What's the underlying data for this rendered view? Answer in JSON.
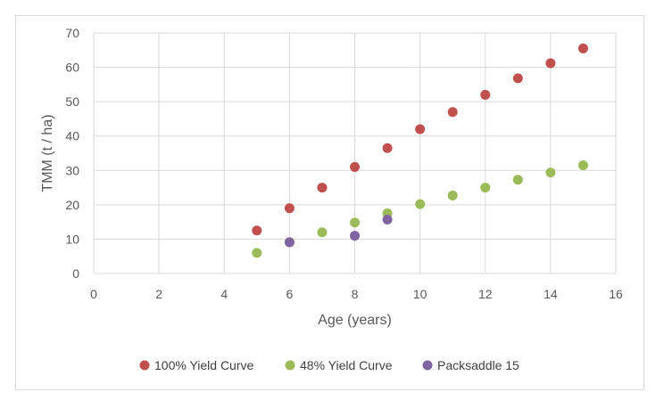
{
  "chart_data": {
    "type": "scatter",
    "title": "",
    "xlabel": "Age (years)",
    "ylabel": "TMM (t / ha)",
    "xlim": [
      0,
      16
    ],
    "ylim": [
      0,
      70
    ],
    "x_ticks": [
      0,
      2,
      4,
      6,
      8,
      10,
      12,
      14,
      16
    ],
    "y_ticks": [
      0,
      10,
      20,
      30,
      40,
      50,
      60,
      70
    ],
    "grid": true,
    "legend_position": "bottom",
    "series": [
      {
        "name": "100% Yield Curve",
        "color": "#c0504d",
        "points": [
          {
            "x": 5,
            "y": 12.5
          },
          {
            "x": 6,
            "y": 19
          },
          {
            "x": 7,
            "y": 25
          },
          {
            "x": 8,
            "y": 31
          },
          {
            "x": 9,
            "y": 36.5
          },
          {
            "x": 10,
            "y": 42
          },
          {
            "x": 11,
            "y": 47
          },
          {
            "x": 12,
            "y": 52
          },
          {
            "x": 13,
            "y": 56.8
          },
          {
            "x": 14,
            "y": 61.2
          },
          {
            "x": 15,
            "y": 65.5
          }
        ]
      },
      {
        "name": "48% Yield Curve",
        "color": "#9bbb59",
        "points": [
          {
            "x": 5,
            "y": 6
          },
          {
            "x": 6,
            "y": 9.1
          },
          {
            "x": 7,
            "y": 12
          },
          {
            "x": 8,
            "y": 14.8
          },
          {
            "x": 9,
            "y": 17.5
          },
          {
            "x": 10,
            "y": 20.2
          },
          {
            "x": 11,
            "y": 22.7
          },
          {
            "x": 12,
            "y": 25
          },
          {
            "x": 13,
            "y": 27.3
          },
          {
            "x": 14,
            "y": 29.4
          },
          {
            "x": 15,
            "y": 31.5
          }
        ]
      },
      {
        "name": "Packsaddle 15",
        "color": "#8064a2",
        "points": [
          {
            "x": 6,
            "y": 9.1
          },
          {
            "x": 8,
            "y": 11
          },
          {
            "x": 9,
            "y": 15.7
          }
        ]
      }
    ]
  }
}
